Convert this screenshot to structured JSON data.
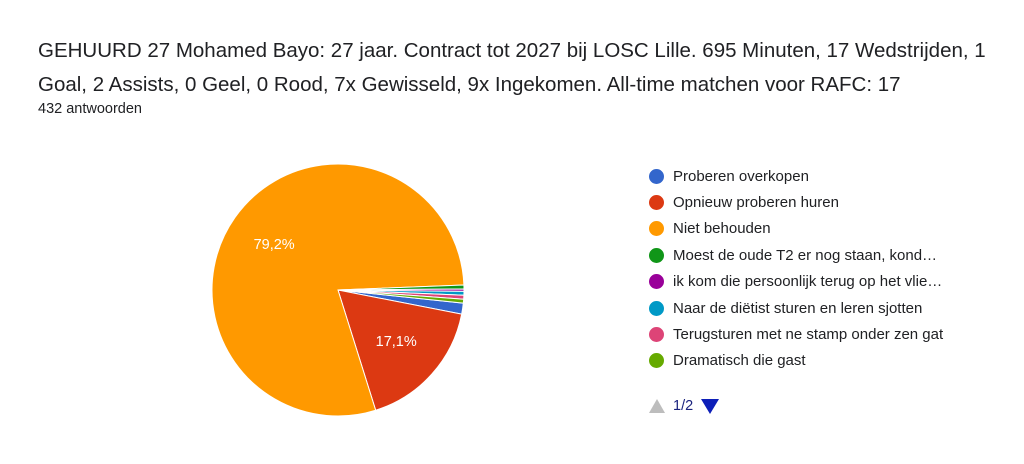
{
  "question": {
    "title": "GEHUURD 27 Mohamed Bayo: 27 jaar. Contract tot 2027 bij LOSC Lille. 695 Minuten, 17 Wedstrijden, 1 Goal, 2 Assists, 0 Geel, 0 Rood, 7x Gewisseld, 9x Ingekomen. All-time matchen voor RAFC: 17",
    "responses": "432 antwoorden"
  },
  "chart_data": {
    "type": "pie",
    "title": "",
    "slices": [
      {
        "label": "Proberen overkopen",
        "value": 1.4,
        "color": "#3366cc",
        "shown_label": ""
      },
      {
        "label": "Opnieuw proberen huren",
        "value": 17.1,
        "color": "#dc3912",
        "shown_label": "17,1%"
      },
      {
        "label": "Niet behouden",
        "value": 79.2,
        "color": "#ff9900",
        "shown_label": "79,2%"
      },
      {
        "label": "Moest de oude T2 er nog staan, kond…",
        "value": 0.5,
        "color": "#109618",
        "shown_label": ""
      },
      {
        "label": "ik kom die persoonlijk terug op het vlie…",
        "value": 0.3,
        "color": "#990099",
        "shown_label": ""
      },
      {
        "label": "Naar de diëtist sturen en leren sjotten",
        "value": 0.5,
        "color": "#0099c6",
        "shown_label": ""
      },
      {
        "label": "Terugsturen met ne stamp onder zen gat",
        "value": 0.5,
        "color": "#dd4477",
        "shown_label": ""
      },
      {
        "label": "Dramatisch die gast",
        "value": 0.5,
        "color": "#66aa00",
        "shown_label": ""
      }
    ],
    "legend_position": "right"
  },
  "pager": {
    "current": "1/2",
    "prev_icon": "triangle-up-icon",
    "next_icon": "triangle-down-icon"
  }
}
